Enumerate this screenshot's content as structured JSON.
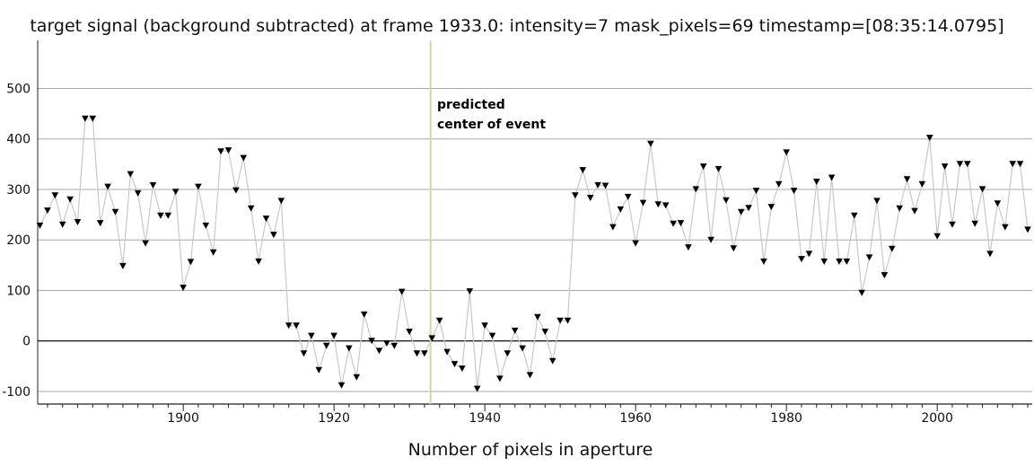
{
  "chart_data": {
    "type": "line",
    "title": "target signal (background subtracted) at frame 1933.0: intensity=7 mask_pixels=69 timestamp=[08:35:14.0795]",
    "xlabel": "Number of pixels in aperture",
    "ylabel": "",
    "xlim": [
      1880.7,
      2012.6
    ],
    "ylim": [
      -125,
      595
    ],
    "xticks": [
      1900,
      1920,
      1940,
      1960,
      1980,
      2000
    ],
    "yticks": [
      -100,
      0,
      100,
      200,
      300,
      400,
      500
    ],
    "grid": true,
    "marker": "down-triangle",
    "line_color": "#c8c8c8",
    "marker_color": "#000000",
    "annotation": {
      "x": 1932.8,
      "line_color": "#d9d3a8",
      "text_line1": "predicted",
      "text_line2": "center of event"
    },
    "series": [
      {
        "x": [
          1881,
          1882,
          1883,
          1884,
          1885,
          1886,
          1887,
          1888,
          1889,
          1890,
          1891,
          1892,
          1893,
          1894,
          1895,
          1896,
          1897,
          1898,
          1899,
          1900,
          1901,
          1902,
          1903,
          1904,
          1905,
          1906,
          1907,
          1908,
          1909,
          1910,
          1911,
          1912,
          1913,
          1914,
          1915,
          1916,
          1917,
          1918,
          1919,
          1920,
          1921,
          1922,
          1923,
          1924,
          1925,
          1926,
          1927,
          1928,
          1929,
          1930,
          1931,
          1932,
          1933,
          1934,
          1935,
          1936,
          1937,
          1938,
          1939,
          1940,
          1941,
          1942,
          1943,
          1944,
          1945,
          1946,
          1947,
          1948,
          1949,
          1950,
          1951,
          1952,
          1953,
          1954,
          1955,
          1956,
          1957,
          1958,
          1959,
          1960,
          1961,
          1962,
          1963,
          1964,
          1965,
          1966,
          1967,
          1968,
          1969,
          1970,
          1971,
          1972,
          1973,
          1974,
          1975,
          1976,
          1977,
          1978,
          1979,
          1980,
          1981,
          1982,
          1983,
          1984,
          1985,
          1986,
          1987,
          1988,
          1989,
          1990,
          1991,
          1992,
          1993,
          1994,
          1995,
          1996,
          1997,
          1998,
          1999,
          2000,
          2001,
          2002,
          2003,
          2004,
          2005,
          2006,
          2007,
          2008,
          2009,
          2010,
          2011,
          2012
        ],
        "y": [
          228,
          258,
          288,
          230,
          280,
          235,
          440,
          440,
          233,
          305,
          255,
          148,
          330,
          292,
          193,
          308,
          248,
          248,
          295,
          105,
          156,
          305,
          228,
          175,
          375,
          377,
          298,
          362,
          262,
          157,
          242,
          210,
          277,
          30,
          30,
          -25,
          10,
          -58,
          -10,
          10,
          -88,
          -15,
          -72,
          52,
          0,
          -20,
          -5,
          -10,
          97,
          18,
          -25,
          -25,
          5,
          40,
          -22,
          -46,
          -55,
          98,
          -95,
          30,
          10,
          -75,
          -25,
          20,
          -15,
          -68,
          47,
          18,
          -40,
          40,
          40,
          288,
          338,
          283,
          308,
          307,
          225,
          260,
          285,
          193,
          273,
          390,
          270,
          268,
          232,
          233,
          185,
          300,
          345,
          200,
          340,
          278,
          183,
          255,
          263,
          297,
          157,
          265,
          310,
          373,
          297,
          162,
          172,
          315,
          157,
          323,
          157,
          157,
          248,
          95,
          165,
          277,
          130,
          182,
          262,
          320,
          257,
          310,
          402,
          207,
          345,
          230,
          350,
          350,
          232,
          300,
          172,
          272,
          225,
          350,
          350,
          220
        ]
      }
    ]
  }
}
